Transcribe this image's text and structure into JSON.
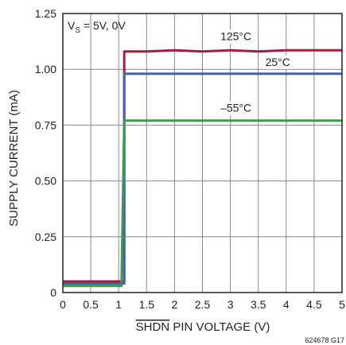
{
  "chart_data": {
    "type": "line",
    "title": "",
    "xlabel": "SHDN PIN VOLTAGE (V)",
    "ylabel": "SUPPLY CURRENT (mA)",
    "xlim": [
      0,
      5
    ],
    "ylim": [
      0,
      1.25
    ],
    "x_ticks": [
      "0",
      "0.5",
      "1",
      "1.5",
      "2",
      "2.5",
      "3",
      "3.5",
      "4",
      "4.5",
      "5"
    ],
    "y_ticks": [
      "0",
      "0.25",
      "0.50",
      "0.75",
      "1.00",
      "1.25"
    ],
    "grid": true,
    "condition": {
      "main": "V",
      "sub": "S",
      "rest": " = 5V, 0V"
    },
    "figure_id": "624678 G17",
    "series": [
      {
        "name": "125°C",
        "color": "#a31d3f",
        "x": [
          0,
          1.1,
          1.1,
          1.5,
          2,
          2.5,
          3,
          3.5,
          4,
          4.5,
          5
        ],
        "y": [
          0.05,
          0.05,
          1.08,
          1.08,
          1.085,
          1.08,
          1.085,
          1.08,
          1.085,
          1.085,
          1.085
        ]
      },
      {
        "name": "25°C",
        "color": "#3d63b8",
        "x": [
          0,
          1.1,
          1.1,
          1.5,
          2,
          2.5,
          3,
          3.5,
          4,
          4.5,
          5
        ],
        "y": [
          0.04,
          0.04,
          0.98,
          0.98,
          0.98,
          0.98,
          0.98,
          0.98,
          0.98,
          0.98,
          0.98
        ]
      },
      {
        "name": "–55°C",
        "color": "#3c9a4e",
        "x": [
          0,
          1.05,
          1.1,
          1.5,
          2,
          2.5,
          3,
          3.5,
          4,
          4.5,
          5
        ],
        "y": [
          0.03,
          0.03,
          0.77,
          0.77,
          0.77,
          0.77,
          0.77,
          0.77,
          0.77,
          0.77,
          0.77
        ]
      }
    ],
    "labels": [
      {
        "text": "125°C",
        "x": 3.1,
        "y": 1.13
      },
      {
        "text": "25°C",
        "x": 3.85,
        "y": 1.015
      },
      {
        "text": "–55°C",
        "x": 3.1,
        "y": 0.81
      }
    ]
  }
}
